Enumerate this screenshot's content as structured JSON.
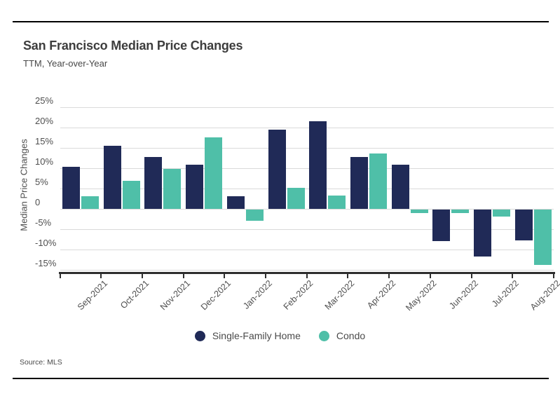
{
  "header": {
    "title": "San Francisco Median Price Changes",
    "subtitle": "TTM, Year-over-Year"
  },
  "source": "Source: MLS",
  "colors": {
    "single_family": "#202A57",
    "condo": "#4FBFA8",
    "gridline": "#DADADA",
    "axis_line": "#2E2E2E",
    "tick_text": "#4F4F4F",
    "title_text": "#3D3D3D",
    "rule": "#000000"
  },
  "chart_data": {
    "type": "bar",
    "title": "San Francisco Median Price Changes",
    "subtitle": "TTM, Year-over-Year",
    "categories": [
      "Sep-2021",
      "Oct-2021",
      "Nov-2021",
      "Dec-2021",
      "Jan-2022",
      "Feb-2022",
      "Mar-2022",
      "Apr-2022",
      "May-2022",
      "Jun-2022",
      "Jul-2022",
      "Aug-2022"
    ],
    "series": [
      {
        "name": "Single-Family Home",
        "color": "#202A57",
        "values": [
          10.3,
          15.6,
          12.7,
          10.8,
          3.1,
          19.5,
          21.5,
          12.8,
          10.9,
          -7.7,
          -11.6,
          -7.5
        ]
      },
      {
        "name": "Condo",
        "color": "#4FBFA8",
        "values": [
          3.1,
          6.9,
          9.8,
          17.6,
          -2.8,
          5.1,
          3.2,
          13.7,
          -0.9,
          -0.9,
          -1.7,
          -13.6
        ]
      }
    ],
    "xlabel": "",
    "ylabel": "Median Price Changes",
    "yticks": [
      {
        "value": 25,
        "label": "25%"
      },
      {
        "value": 20,
        "label": "20%"
      },
      {
        "value": 15,
        "label": "15%"
      },
      {
        "value": 10,
        "label": "10%"
      },
      {
        "value": 5,
        "label": "5%"
      },
      {
        "value": 0,
        "label": "0"
      },
      {
        "value": -5,
        "label": "-5%"
      },
      {
        "value": -10,
        "label": "-10%"
      },
      {
        "value": -15,
        "label": "-15%"
      }
    ],
    "ylim": [
      -15.7,
      27.4
    ],
    "grid": true,
    "legend_position": "bottom"
  }
}
